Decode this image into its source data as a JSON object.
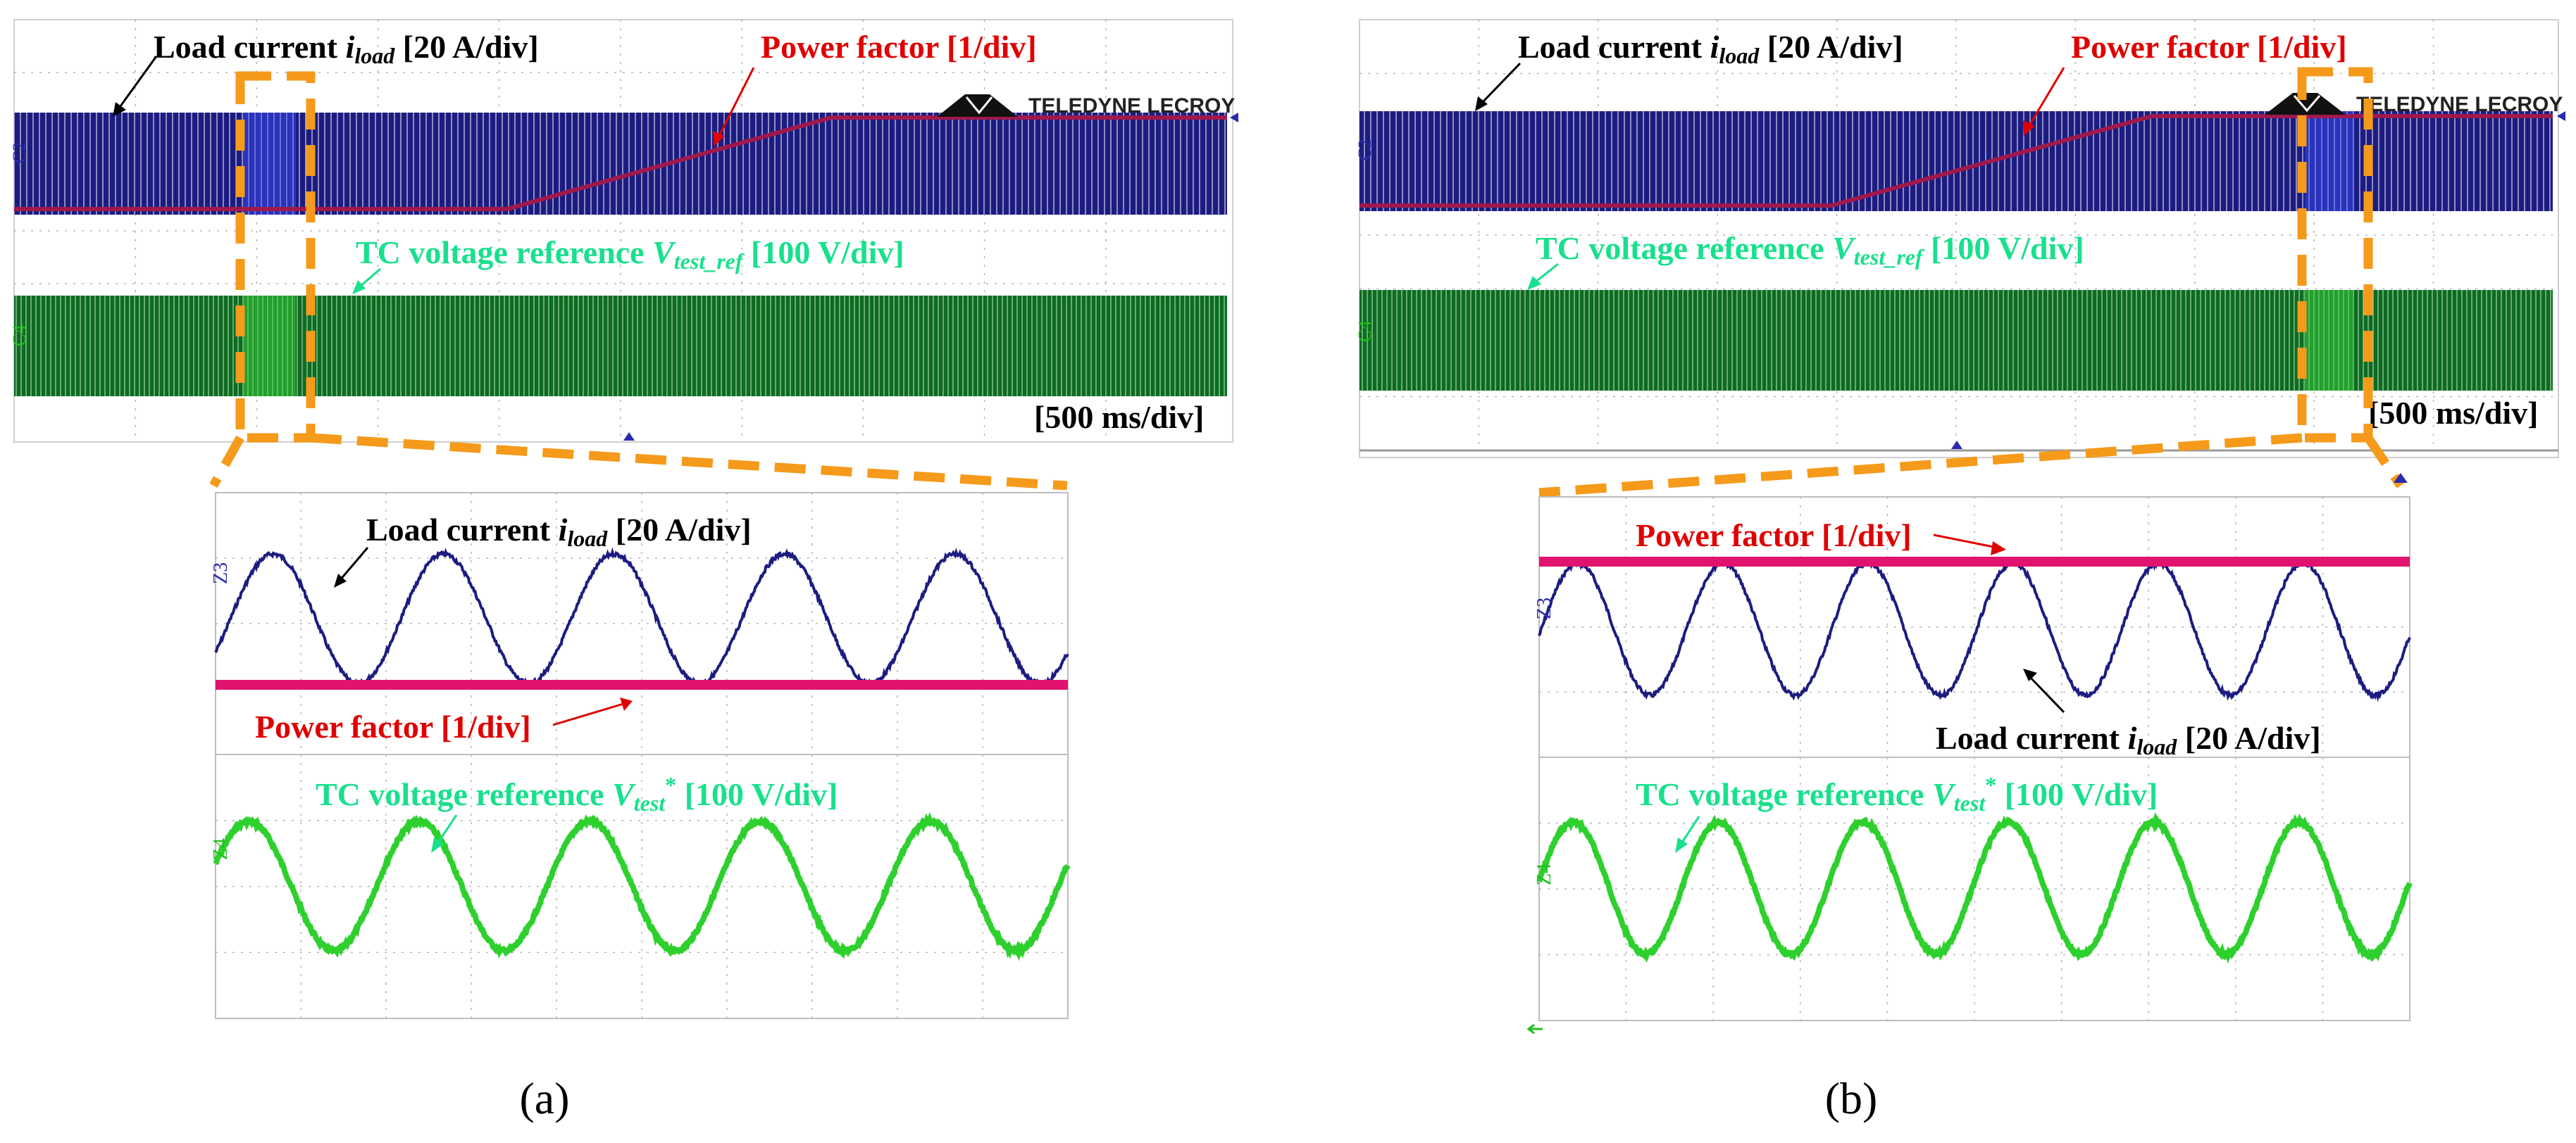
{
  "colors": {
    "current": "#1c1c80",
    "pf": "#e0146e",
    "pf_top": "#a0194c",
    "voltage": "#1e7a2c",
    "voltage_zoom": "#2ed02e",
    "label_current": "#000000",
    "label_pf": "#e00000",
    "label_voltage": "#18e08c",
    "zoom_box": "#f59a1a",
    "grid": "#a8a8a8"
  },
  "labels": {
    "load_current_prefix": "Load current ",
    "i": "i",
    "load_sub": "load",
    "scale_20a": " [20 A/div]",
    "power_factor": "Power factor [1/div]",
    "tc_prefix": "TC voltage reference ",
    "v": "V",
    "test_ref_sub": "test_ref",
    "test_sub": "test",
    "star": "*",
    "scale_100v": " [100 V/div]",
    "timebase": "[500 ms/div]",
    "brand": "TELEDYNE LECROY",
    "ch_c2": "C2",
    "ch_c4": "C4",
    "ch_z3": "Z3",
    "ch_z4": "Z4"
  },
  "panels": {
    "a": {
      "caption": "(a)"
    },
    "b": {
      "caption": "(b)"
    }
  },
  "chart_data": [
    {
      "id": "a-overview",
      "type": "line",
      "title": "",
      "timebase": "500 ms/div",
      "series": [
        {
          "name": "Load current i_load",
          "scale": "20 A/div",
          "kind": "carrier-envelope",
          "amplitude_div": 2
        },
        {
          "name": "Power factor",
          "scale": "1/div",
          "kind": "ramp",
          "start_div": 3.0,
          "end_div": 5.0,
          "start_time_frac": 0.41,
          "end_time_frac": 0.68
        },
        {
          "name": "TC voltage reference V_test_ref",
          "scale": "100 V/div",
          "kind": "carrier-envelope",
          "amplitude_div": 1.5
        }
      ],
      "zoom_window_time_frac": [
        0.18,
        0.23
      ]
    },
    {
      "id": "a-zoom",
      "type": "line",
      "series": [
        {
          "name": "Load current i_load",
          "scale": "20 A/div",
          "cycles": 5,
          "amplitude_div": 1.0,
          "offset_div": 1.0
        },
        {
          "name": "Power factor",
          "scale": "1/div",
          "value_div": 0.0
        },
        {
          "name": "TC voltage reference V_test*",
          "scale": "100 V/div",
          "cycles": 5,
          "amplitude_div": 1.0
        }
      ]
    },
    {
      "id": "b-overview",
      "type": "line",
      "title": "",
      "timebase": "500 ms/div",
      "series": [
        {
          "name": "Load current i_load",
          "scale": "20 A/div",
          "kind": "carrier-envelope",
          "amplitude_div": 2
        },
        {
          "name": "Power factor",
          "scale": "1/div",
          "kind": "ramp",
          "start_div": 3.0,
          "end_div": 5.0,
          "start_time_frac": 0.39,
          "end_time_frac": 0.69
        },
        {
          "name": "TC voltage reference V_test_ref",
          "scale": "100 V/div",
          "kind": "carrier-envelope",
          "amplitude_div": 1.5
        }
      ],
      "zoom_window_time_frac": [
        0.79,
        0.83
      ]
    },
    {
      "id": "b-zoom",
      "type": "line",
      "series": [
        {
          "name": "Load current i_load",
          "scale": "20 A/div",
          "cycles": 6,
          "amplitude_div": 1.0,
          "offset_div": 0.0
        },
        {
          "name": "Power factor",
          "scale": "1/div",
          "value_div": 1.0
        },
        {
          "name": "TC voltage reference V_test*",
          "scale": "100 V/div",
          "cycles": 6,
          "amplitude_div": 1.0
        }
      ]
    }
  ]
}
